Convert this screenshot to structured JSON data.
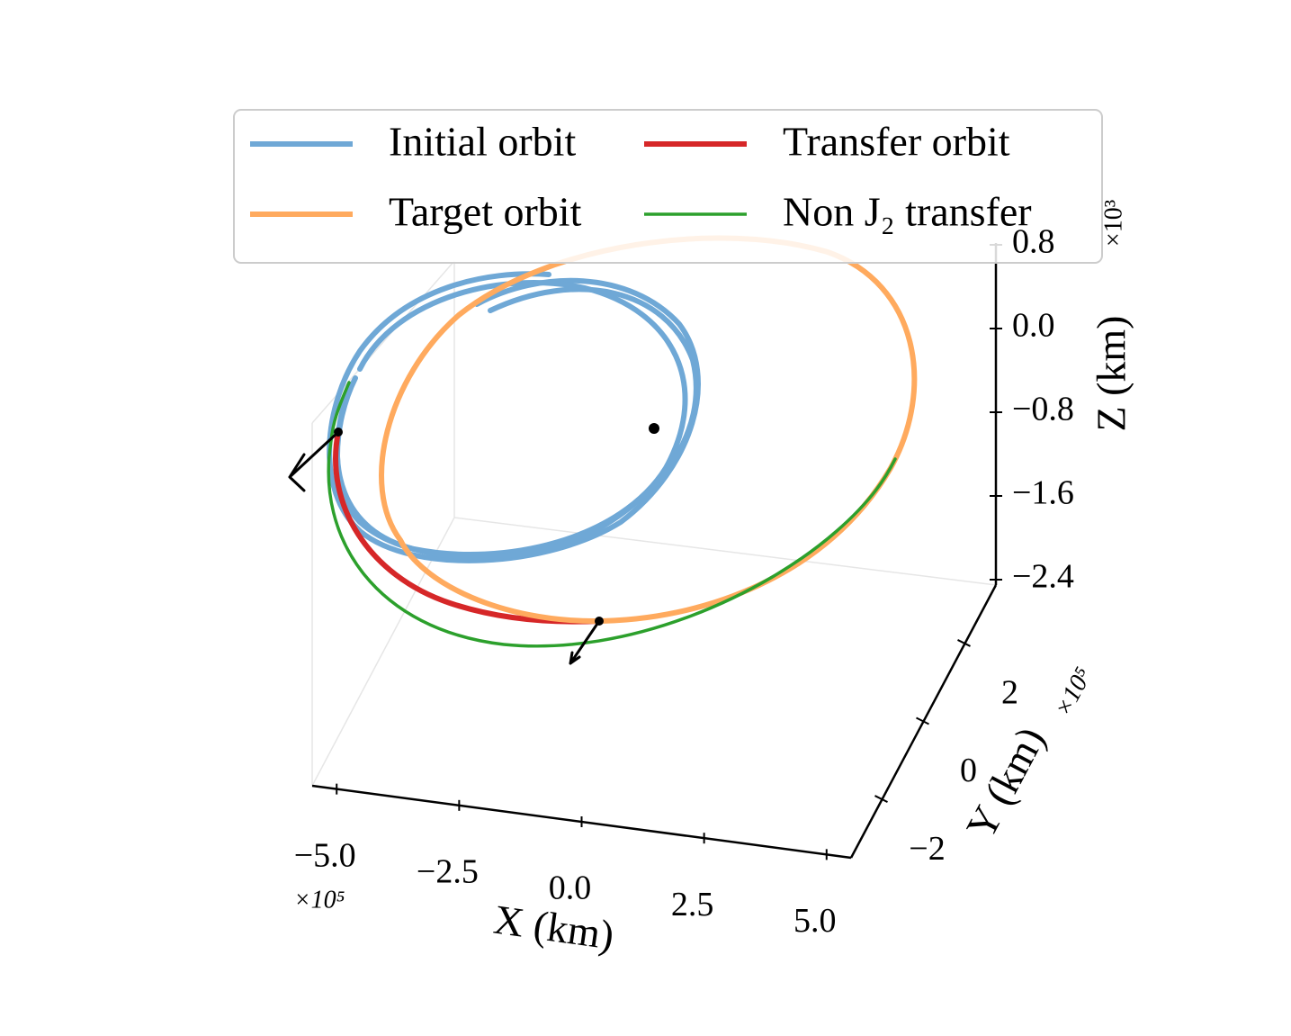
{
  "chart_data": {
    "type": "line3d",
    "series": [
      {
        "name": "Initial orbit",
        "color": "#6fa8d6"
      },
      {
        "name": "Transfer orbit",
        "color": "#d62728"
      },
      {
        "name": "Target orbit",
        "color": "#ffaa5e"
      },
      {
        "name": "Non J₂ transfer",
        "color": "#2ca02c"
      }
    ],
    "xlabel": "X (km)",
    "ylabel": "Y (km)",
    "zlabel": "Z (km)",
    "x_offset": "×10⁵",
    "y_offset": "×10⁵",
    "z_offset": "×10³",
    "xlim": [
      -5.5,
      5.5
    ],
    "xticks": [
      {
        "value": -5,
        "label": "−5.0"
      },
      {
        "value": -2.5,
        "label": "−2.5"
      },
      {
        "value": 0,
        "label": "0.0"
      },
      {
        "value": 2.5,
        "label": "2.5"
      },
      {
        "value": 5,
        "label": "5.0"
      }
    ],
    "ylim": [
      -3.5,
      3.5
    ],
    "yticks": [
      {
        "value": -2,
        "label": "−2"
      },
      0,
      2
    ],
    "zlim": [
      -2.4,
      0.8
    ],
    "zticks": [
      {
        "value": 0.8,
        "label": "0.8"
      },
      {
        "value": 0,
        "label": "0.0"
      },
      {
        "value": -0.8,
        "label": "−0.8"
      },
      {
        "value": -1.6,
        "label": "−1.6"
      },
      {
        "value": -2.4,
        "label": "−2.4"
      }
    ]
  }
}
